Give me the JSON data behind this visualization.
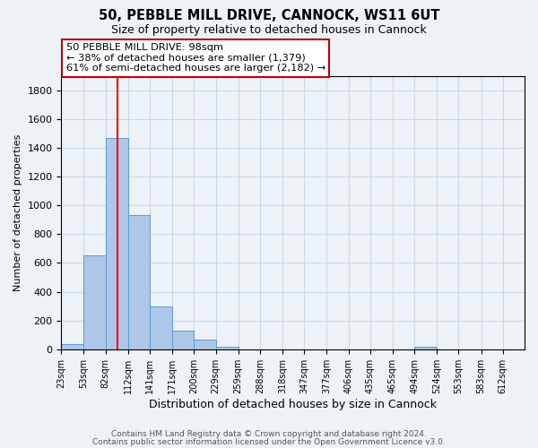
{
  "title": "50, PEBBLE MILL DRIVE, CANNOCK, WS11 6UT",
  "subtitle": "Size of property relative to detached houses in Cannock",
  "xlabel": "Distribution of detached houses by size in Cannock",
  "ylabel": "Number of detached properties",
  "bar_values": [
    35,
    650,
    1470,
    935,
    295,
    130,
    65,
    20,
    0,
    0,
    0,
    0,
    0,
    0,
    0,
    0,
    15
  ],
  "bin_edges": [
    23,
    53,
    82,
    112,
    141,
    171,
    200,
    229,
    259,
    288,
    318,
    347,
    377,
    406,
    435,
    465,
    494,
    524
  ],
  "tick_labels": [
    "23sqm",
    "53sqm",
    "82sqm",
    "112sqm",
    "141sqm",
    "171sqm",
    "200sqm",
    "229sqm",
    "259sqm",
    "288sqm",
    "318sqm",
    "347sqm",
    "377sqm",
    "406sqm",
    "435sqm",
    "465sqm",
    "494sqm",
    "524sqm",
    "553sqm",
    "583sqm",
    "612sqm"
  ],
  "all_ticks": [
    23,
    53,
    82,
    112,
    141,
    171,
    200,
    229,
    259,
    288,
    318,
    347,
    377,
    406,
    435,
    465,
    494,
    524,
    553,
    583,
    612
  ],
  "bar_color": "#aec6e8",
  "bar_edge_color": "#5b9bd5",
  "red_line_x": 98,
  "ylim": [
    0,
    1900
  ],
  "yticks": [
    0,
    200,
    400,
    600,
    800,
    1000,
    1200,
    1400,
    1600,
    1800
  ],
  "annotation_title": "50 PEBBLE MILL DRIVE: 98sqm",
  "annotation_line1": "← 38% of detached houses are smaller (1,379)",
  "annotation_line2": "61% of semi-detached houses are larger (2,182) →",
  "annotation_box_color": "#ffffff",
  "annotation_box_edge": "#cc0000",
  "footer1": "Contains HM Land Registry data © Crown copyright and database right 2024.",
  "footer2": "Contains public sector information licensed under the Open Government Licence v3.0.",
  "background_color": "#ffffff",
  "grid_color": "#c8d8e8",
  "fig_bg_color": "#edf2f7"
}
